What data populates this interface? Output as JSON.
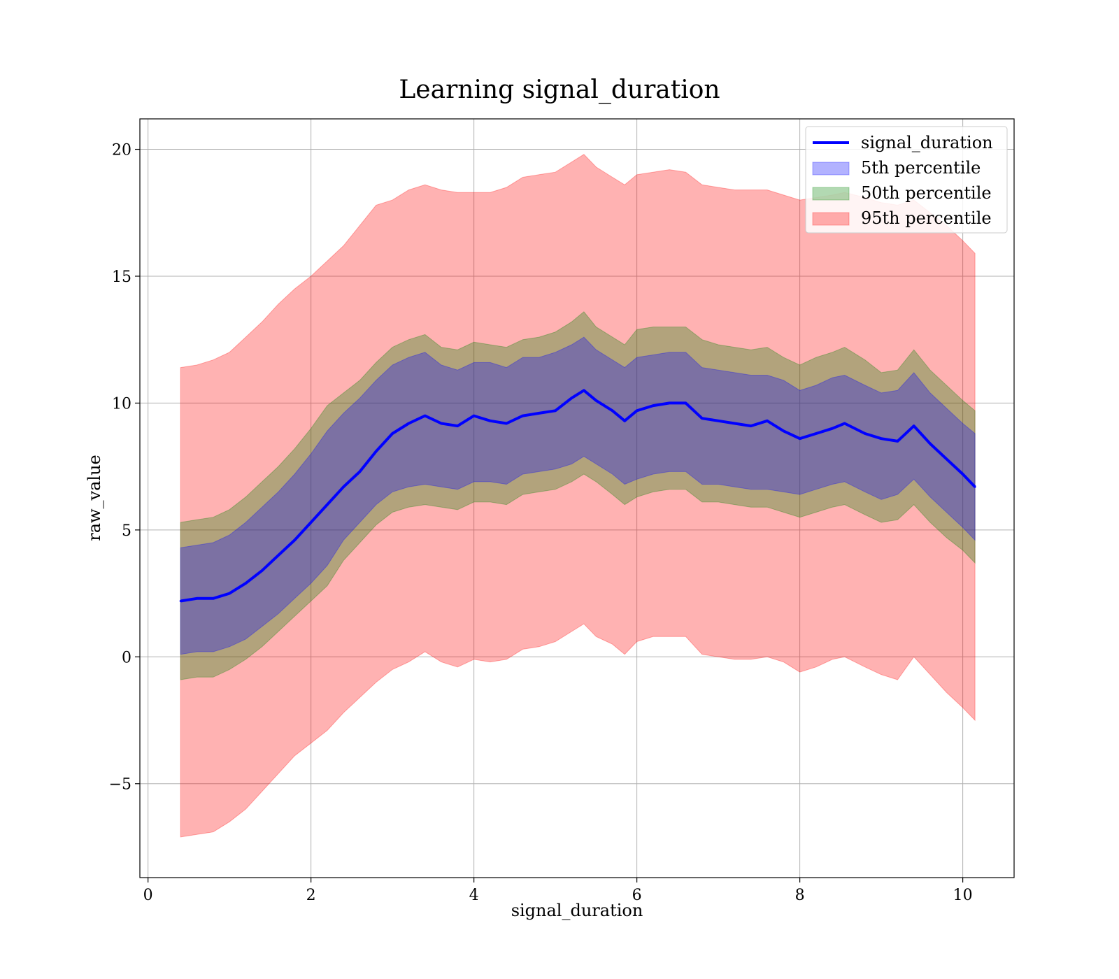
{
  "chart_data": {
    "type": "line",
    "title": "Learning signal_duration",
    "xlabel": "signal_duration",
    "ylabel": "raw_value",
    "xlim": [
      -0.1,
      10.63
    ],
    "ylim": [
      -8.7,
      21.2
    ],
    "x_ticks": [
      0,
      2,
      4,
      6,
      8,
      10
    ],
    "x_tick_labels": [
      "0",
      "2",
      "4",
      "6",
      "8",
      "10"
    ],
    "y_ticks": [
      -5,
      0,
      5,
      10,
      15,
      20
    ],
    "y_tick_labels": [
      "−5",
      "0",
      "5",
      "10",
      "15",
      "20"
    ],
    "grid": true,
    "legend_position": "top-right",
    "x": [
      0.4,
      0.6,
      0.8,
      1.0,
      1.2,
      1.4,
      1.6,
      1.8,
      2.0,
      2.2,
      2.4,
      2.6,
      2.8,
      3.0,
      3.2,
      3.4,
      3.6,
      3.8,
      4.0,
      4.2,
      4.4,
      4.6,
      4.8,
      5.0,
      5.2,
      5.35,
      5.5,
      5.7,
      5.85,
      6.0,
      6.2,
      6.4,
      6.6,
      6.8,
      7.0,
      7.2,
      7.4,
      7.6,
      7.8,
      8.0,
      8.2,
      8.4,
      8.55,
      8.8,
      9.0,
      9.2,
      9.4,
      9.6,
      9.8,
      10.0,
      10.15
    ],
    "series": [
      {
        "name": "signal_duration",
        "kind": "line",
        "color": "#0000ff",
        "values": [
          2.2,
          2.3,
          2.3,
          2.5,
          2.9,
          3.4,
          4.0,
          4.6,
          5.3,
          6.0,
          6.7,
          7.3,
          8.1,
          8.8,
          9.2,
          9.5,
          9.2,
          9.1,
          9.5,
          9.3,
          9.2,
          9.5,
          9.6,
          9.7,
          10.2,
          10.5,
          10.1,
          9.7,
          9.3,
          9.7,
          9.9,
          10.0,
          10.0,
          9.4,
          9.3,
          9.2,
          9.1,
          9.3,
          8.9,
          8.6,
          8.8,
          9.0,
          9.2,
          8.8,
          8.6,
          8.5,
          9.1,
          8.4,
          7.8,
          7.2,
          6.7
        ]
      },
      {
        "name": "5th percentile",
        "kind": "band",
        "color": "#0000ff",
        "upper": [
          4.3,
          4.4,
          4.5,
          4.8,
          5.3,
          5.9,
          6.5,
          7.2,
          8.0,
          8.9,
          9.6,
          10.2,
          10.9,
          11.5,
          11.8,
          12.0,
          11.5,
          11.3,
          11.6,
          11.6,
          11.4,
          11.8,
          11.8,
          12.0,
          12.3,
          12.6,
          12.1,
          11.7,
          11.4,
          11.8,
          11.9,
          12.0,
          12.0,
          11.4,
          11.3,
          11.2,
          11.1,
          11.1,
          10.9,
          10.5,
          10.7,
          11.0,
          11.1,
          10.7,
          10.4,
          10.5,
          11.2,
          10.4,
          9.8,
          9.2,
          8.8
        ],
        "lower": [
          0.1,
          0.2,
          0.2,
          0.4,
          0.7,
          1.2,
          1.7,
          2.3,
          2.9,
          3.6,
          4.6,
          5.3,
          6.0,
          6.5,
          6.7,
          6.8,
          6.7,
          6.6,
          6.9,
          6.9,
          6.8,
          7.2,
          7.3,
          7.4,
          7.6,
          7.9,
          7.6,
          7.2,
          6.8,
          7.0,
          7.2,
          7.3,
          7.3,
          6.8,
          6.8,
          6.7,
          6.6,
          6.6,
          6.5,
          6.4,
          6.6,
          6.8,
          6.9,
          6.5,
          6.2,
          6.4,
          7.0,
          6.3,
          5.7,
          5.1,
          4.6
        ]
      },
      {
        "name": "50th percentile",
        "kind": "band",
        "color": "#008000",
        "upper": [
          5.3,
          5.4,
          5.5,
          5.8,
          6.3,
          6.9,
          7.5,
          8.2,
          9.0,
          9.9,
          10.4,
          10.9,
          11.6,
          12.2,
          12.5,
          12.7,
          12.2,
          12.1,
          12.4,
          12.3,
          12.2,
          12.5,
          12.6,
          12.8,
          13.2,
          13.6,
          13.0,
          12.6,
          12.3,
          12.9,
          13.0,
          13.0,
          13.0,
          12.5,
          12.3,
          12.2,
          12.1,
          12.2,
          11.8,
          11.5,
          11.8,
          12.0,
          12.2,
          11.7,
          11.2,
          11.3,
          12.1,
          11.3,
          10.7,
          10.1,
          9.7
        ],
        "lower": [
          -0.9,
          -0.8,
          -0.8,
          -0.5,
          -0.1,
          0.4,
          1.0,
          1.6,
          2.2,
          2.8,
          3.8,
          4.5,
          5.2,
          5.7,
          5.9,
          6.0,
          5.9,
          5.8,
          6.1,
          6.1,
          6.0,
          6.4,
          6.5,
          6.6,
          6.9,
          7.2,
          6.9,
          6.4,
          6.0,
          6.3,
          6.5,
          6.6,
          6.6,
          6.1,
          6.1,
          6.0,
          5.9,
          5.9,
          5.7,
          5.5,
          5.7,
          5.9,
          6.0,
          5.6,
          5.3,
          5.4,
          6.0,
          5.3,
          4.7,
          4.2,
          3.7
        ]
      },
      {
        "name": "95th percentile",
        "kind": "band",
        "color": "#ff0000",
        "upper": [
          11.4,
          11.5,
          11.7,
          12.0,
          12.6,
          13.2,
          13.9,
          14.5,
          15.0,
          15.6,
          16.2,
          17.0,
          17.8,
          18.0,
          18.4,
          18.6,
          18.4,
          18.3,
          18.3,
          18.3,
          18.5,
          18.9,
          19.0,
          19.1,
          19.5,
          19.8,
          19.3,
          18.9,
          18.6,
          19.0,
          19.1,
          19.2,
          19.1,
          18.6,
          18.5,
          18.4,
          18.4,
          18.4,
          18.2,
          18.0,
          18.1,
          18.2,
          18.3,
          18.1,
          17.9,
          17.8,
          18.0,
          17.5,
          17.0,
          16.4,
          15.9
        ],
        "lower": [
          -7.1,
          -7.0,
          -6.9,
          -6.5,
          -6.0,
          -5.3,
          -4.6,
          -3.9,
          -3.4,
          -2.9,
          -2.2,
          -1.6,
          -1.0,
          -0.5,
          -0.2,
          0.2,
          -0.2,
          -0.4,
          -0.1,
          -0.2,
          -0.1,
          0.3,
          0.4,
          0.6,
          1.0,
          1.3,
          0.8,
          0.5,
          0.1,
          0.6,
          0.8,
          0.8,
          0.8,
          0.1,
          0.0,
          -0.1,
          -0.1,
          0.0,
          -0.2,
          -0.6,
          -0.4,
          -0.1,
          0.0,
          -0.4,
          -0.7,
          -0.9,
          0.0,
          -0.7,
          -1.4,
          -2.0,
          -2.5
        ]
      }
    ]
  }
}
